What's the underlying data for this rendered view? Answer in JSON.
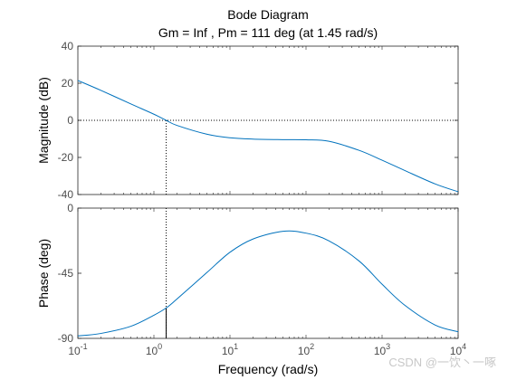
{
  "chart_data": {
    "type": "line",
    "title": "Bode Diagram",
    "subtitle": "Gm = Inf ,  Pm = 111 deg (at 1.45 rad/s)",
    "xlabel": "Frequency  (rad/s)",
    "xscale": "log",
    "xlim": [
      0.1,
      10000
    ],
    "x_ticks": [
      {
        "base": "10",
        "exp": "-1",
        "value": 0.1
      },
      {
        "base": "10",
        "exp": "0",
        "value": 1
      },
      {
        "base": "10",
        "exp": "1",
        "value": 10
      },
      {
        "base": "10",
        "exp": "2",
        "value": 100
      },
      {
        "base": "10",
        "exp": "3",
        "value": 1000
      },
      {
        "base": "10",
        "exp": "4",
        "value": 10000
      }
    ],
    "crossover_frequency": 1.45,
    "magnitude": {
      "ylabel": "Magnitude (dB)",
      "ylim": [
        -40,
        40
      ],
      "yticks": [
        "40",
        "20",
        "0",
        "-20",
        "-40"
      ],
      "ytick_values": [
        40,
        20,
        0,
        -20,
        -40
      ],
      "reference_line": 0,
      "x": [
        0.1,
        0.2,
        0.5,
        1,
        1.45,
        2,
        5,
        10,
        20,
        50,
        100,
        200,
        500,
        1000,
        2000,
        5000,
        10000
      ],
      "y": [
        21.5,
        16.2,
        8.8,
        3.3,
        0.0,
        -2.7,
        -7.5,
        -9.4,
        -10.1,
        -10.4,
        -10.5,
        -11.3,
        -16.2,
        -21.5,
        -27.1,
        -34.3,
        -38.5
      ]
    },
    "phase": {
      "ylabel": "Phase (deg)",
      "ylim": [
        -90,
        0
      ],
      "yticks": [
        "0",
        "-45",
        "-90"
      ],
      "ytick_values": [
        0,
        -45,
        -90
      ],
      "x": [
        0.1,
        0.2,
        0.5,
        1,
        1.45,
        2,
        5,
        10,
        20,
        50,
        100,
        200,
        500,
        1000,
        2000,
        5000,
        10000
      ],
      "y": [
        -88.3,
        -86.6,
        -81.6,
        -74.0,
        -69.0,
        -62.9,
        -44.4,
        -30.5,
        -21.4,
        -16.0,
        -17.3,
        -22.6,
        -36.6,
        -52.6,
        -67.2,
        -80.8,
        -85.4
      ]
    },
    "color": "#0072bd",
    "grid": false
  },
  "watermark": "CSDN @一饮丶一啄"
}
